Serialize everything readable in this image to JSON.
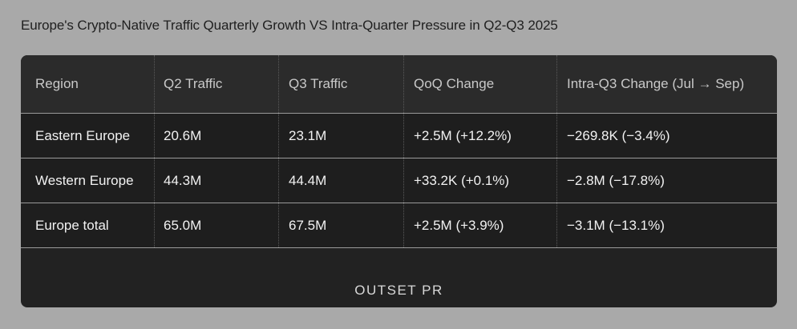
{
  "title": "Europe's Crypto-Native Traffic Quarterly Growth VS Intra-Quarter Pressure in Q2-Q3 2025",
  "chart_data": {
    "type": "table",
    "title": "Europe's Crypto-Native Traffic Quarterly Growth VS Intra-Quarter Pressure in Q2-Q3 2025",
    "columns": [
      "Region",
      "Q2 Traffic",
      "Q3 Traffic",
      "QoQ Change",
      "Intra-Q3 Change (Jul → Sep)"
    ],
    "rows": [
      [
        "Eastern Europe",
        "20.6M",
        "23.1M",
        "+2.5M (+12.2%)",
        "−269.8K (−3.4%)"
      ],
      [
        "Western Europe",
        "44.3M",
        "44.4M",
        "+33.2K (+0.1%)",
        "−2.8M (−17.8%)"
      ],
      [
        "Europe total",
        "65.0M",
        "67.5M",
        "+2.5M (+3.9%)",
        "−3.1M (−13.1%)"
      ]
    ]
  },
  "watermark": "OUTSET PR",
  "colors": {
    "background": "#a9a9a9",
    "card": "#222222",
    "header": "#2b2b2b",
    "text": "#f2f2f2"
  }
}
